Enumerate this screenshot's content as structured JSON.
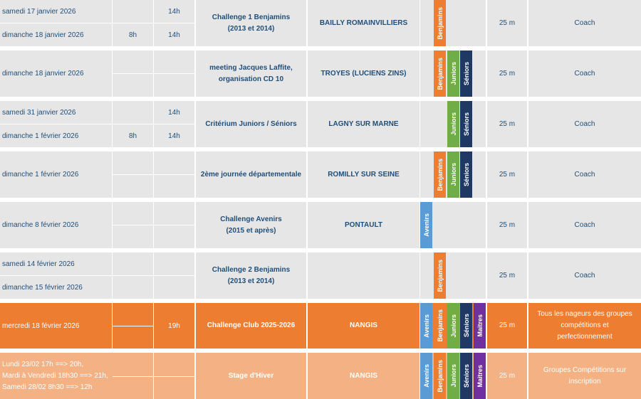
{
  "colors": {
    "benjamins": "#ed7d31",
    "juniors": "#70ad47",
    "seniors": "#1f3864",
    "avenirs": "#5b9bd5",
    "maitres": "#7030a0"
  },
  "rows": [
    {
      "dates": [
        "samedi 17 janvier 2026",
        "dimanche 18 janvier 2026"
      ],
      "start": [
        "",
        "8h"
      ],
      "end": [
        "14h",
        "14h"
      ],
      "event": [
        "Challenge 1 Benjamins",
        "(2013 et 2014)"
      ],
      "place": "BAILLY ROMAINVILLIERS",
      "categories": [
        "Benjamins"
      ],
      "pool": "25 m",
      "who": "Coach"
    },
    {
      "dates": [
        "dimanche 18 janvier 2026"
      ],
      "start": [
        ""
      ],
      "end": [
        ""
      ],
      "event": [
        "meeting Jacques Laffite,",
        "organisation CD 10"
      ],
      "place": "TROYES (LUCIENS ZINS)",
      "categories": [
        "Benjamins",
        "Juniors",
        "Séniors"
      ],
      "pool": "25 m",
      "who": "Coach"
    },
    {
      "dates": [
        "samedi 31 janvier 2026",
        "dimanche 1 février 2026"
      ],
      "start": [
        "",
        "8h"
      ],
      "end": [
        "14h",
        "14h"
      ],
      "event": [
        "Critérium Juniors / Séniors"
      ],
      "place": "LAGNY SUR MARNE",
      "categories": [
        "Juniors",
        "Séniors"
      ],
      "pool": "25 m",
      "who": "Coach"
    },
    {
      "dates": [
        "dimanche 1 février 2026"
      ],
      "start": [
        ""
      ],
      "end": [
        ""
      ],
      "event": [
        "2ème journée départementale"
      ],
      "place": "ROMILLY SUR SEINE",
      "categories": [
        "Benjamins",
        "Juniors",
        "Séniors"
      ],
      "pool": "25 m",
      "who": "Coach"
    },
    {
      "dates": [
        "dimanche 8 février 2026"
      ],
      "start": [
        ""
      ],
      "end": [
        ""
      ],
      "event": [
        "Challenge Avenirs",
        "(2015 et après)"
      ],
      "place": "PONTAULT",
      "categories": [
        "Avenirs"
      ],
      "pool": "25 m",
      "who": "Coach"
    },
    {
      "dates": [
        "samedi 14 février 2026",
        "dimanche 15 février 2026"
      ],
      "start": [
        "",
        ""
      ],
      "end": [
        "",
        ""
      ],
      "event": [
        "Challenge 2 Benjamins",
        "(2013 et 2014)"
      ],
      "place": "",
      "categories": [
        "Benjamins"
      ],
      "pool": "25 m",
      "who": "Coach"
    },
    {
      "dates": [
        "mercredi 18 février 2026"
      ],
      "start": [
        ""
      ],
      "end": [
        "19h"
      ],
      "event": [
        "Challenge Club 2025-2026"
      ],
      "place": "NANGIS",
      "categories": [
        "Avenirs",
        "Benjamins",
        "Juniors",
        "Séniors",
        "Maitres"
      ],
      "pool": "25 m",
      "who": "Tous les nageurs des groupes compétitions et perfectionnement"
    },
    {
      "dates": [
        "Lundi 23/02 17h ==> 20h,",
        "Mardi à Vendredi 18h30 ==> 21h,",
        "Samedi 28/02 8h30 ==> 12h"
      ],
      "start": [
        ""
      ],
      "end": [
        ""
      ],
      "event": [
        "Stage d'Hiver"
      ],
      "place": "NANGIS",
      "categories": [
        "Avenirs",
        "Benjamins",
        "Juniors",
        "Séniors",
        "Maitres"
      ],
      "pool": "25 m",
      "who": "Groupes Compétitions sur inscription"
    }
  ]
}
